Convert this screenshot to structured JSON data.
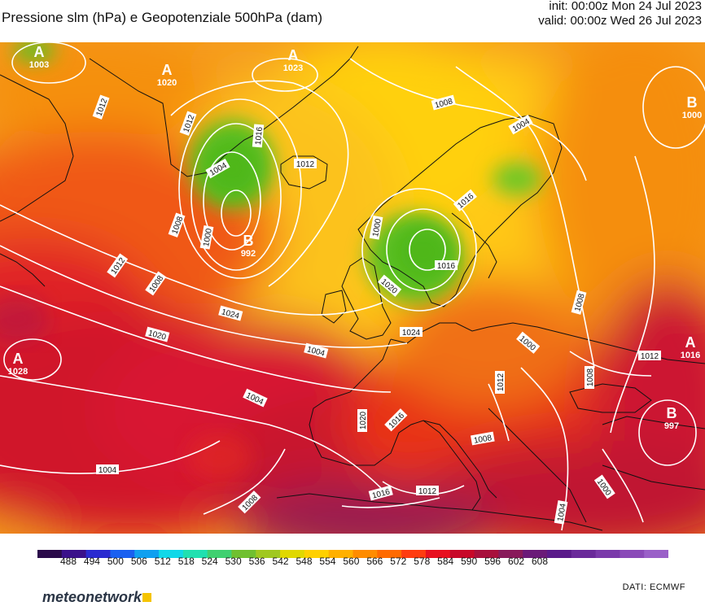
{
  "header": {
    "title": "Pressione slm (hPa) e Geopotenziale 500hPa (dam)",
    "init": "init: 00:00z Mon 24 Jul 2023",
    "valid": "valid: 00:00z Wed 26 Jul 2023"
  },
  "map": {
    "centers": [
      {
        "kind": "A",
        "value": "1003",
        "color": "#ffffff"
      },
      {
        "kind": "A",
        "value": "1020",
        "color": "#ffffff"
      },
      {
        "kind": "A",
        "value": "1023",
        "color": "#ffffff"
      },
      {
        "kind": "B",
        "value": "1000",
        "color": "#ffffff"
      },
      {
        "kind": "B",
        "value": "992",
        "color": "#ffffff"
      },
      {
        "kind": "A",
        "value": "1028",
        "color": "#ffffff"
      },
      {
        "kind": "A",
        "value": "1016",
        "color": "#ffffff"
      },
      {
        "kind": "B",
        "value": "997",
        "color": "#ffffff"
      }
    ],
    "isobar_labels": [
      "1012",
      "1012",
      "1016",
      "1004",
      "1012",
      "1008",
      "1004",
      "1008",
      "1000",
      "1000",
      "1016",
      "1012",
      "1008",
      "1020",
      "1016",
      "1024",
      "1024",
      "1020",
      "1004",
      "1000",
      "1008",
      "1008",
      "1012",
      "1012",
      "1004",
      "1020",
      "1016",
      "1008",
      "1016",
      "1012",
      "1004",
      "1008",
      "1000",
      "1004"
    ]
  },
  "colorbar": {
    "colors": [
      "#2a0a4a",
      "#3a108a",
      "#2a2ad0",
      "#1a60f0",
      "#10a0f0",
      "#10d8e8",
      "#20e0b0",
      "#40d070",
      "#70c030",
      "#a0c820",
      "#e0d800",
      "#ffd000",
      "#ffb000",
      "#ff8c00",
      "#ff6a00",
      "#ff3c10",
      "#e81020",
      "#c80828",
      "#a8103c",
      "#881a5a",
      "#6a1a78",
      "#5a1a8a",
      "#6a2a9a",
      "#7a3aaa",
      "#8a4ab8",
      "#9a60c8"
    ],
    "labels": [
      "488",
      "494",
      "500",
      "506",
      "512",
      "518",
      "524",
      "530",
      "536",
      "542",
      "548",
      "554",
      "560",
      "566",
      "572",
      "578",
      "584",
      "590",
      "596",
      "602",
      "608"
    ]
  },
  "footer": {
    "logo_text": "meteonetwork",
    "credit": "DATI:  ECMWF"
  }
}
